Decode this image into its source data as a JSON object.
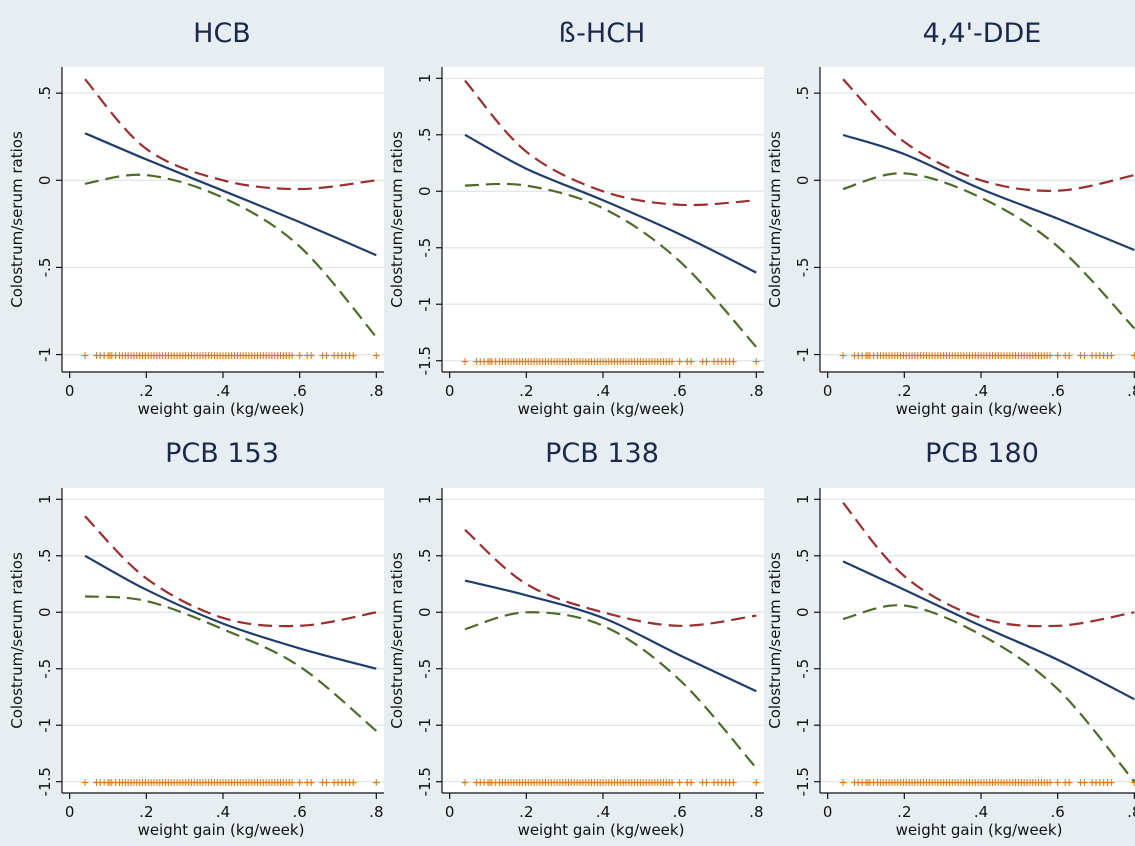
{
  "chart_data": [
    {
      "type": "line",
      "title": "HCB",
      "xlabel": "weight gain (kg/week)",
      "ylabel": "Colostrum/serum ratios",
      "x_ticks": [
        "0",
        ".2",
        ".4",
        ".6",
        ".8"
      ],
      "xlim": [
        -0.02,
        0.82
      ],
      "y_ticks": [
        ".5",
        "0",
        "-.5",
        "-1"
      ],
      "y_tick_values": [
        0.5,
        0,
        -0.5,
        -1
      ],
      "ylim": [
        -1.1,
        0.65
      ],
      "grid": true,
      "x": [
        0.04,
        0.2,
        0.4,
        0.6,
        0.8
      ],
      "series": [
        {
          "color": "#9b2e2e",
          "dash": true,
          "values": [
            0.58,
            0.18,
            0.0,
            -0.05,
            0.0
          ]
        },
        {
          "color": "#1f3d6b",
          "dash": false,
          "values": [
            0.27,
            0.12,
            -0.06,
            -0.24,
            -0.43
          ]
        },
        {
          "color": "#4f6b2a",
          "dash": true,
          "values": [
            -0.02,
            0.03,
            -0.1,
            -0.38,
            -0.9
          ]
        }
      ],
      "rug_y": -1,
      "rug_color": "#e07a10"
    },
    {
      "type": "line",
      "title": "ß-HCH",
      "xlabel": "weight gain (kg/week)",
      "ylabel": "Colostrum/serum ratios",
      "x_ticks": [
        "0",
        ".2",
        ".4",
        ".6",
        ".8"
      ],
      "xlim": [
        -0.02,
        0.82
      ],
      "y_ticks": [
        "1",
        ".5",
        "0",
        "-.5",
        "-1",
        "-1.5"
      ],
      "y_tick_values": [
        1,
        0.5,
        0,
        -0.5,
        -1,
        -1.5
      ],
      "ylim": [
        -1.6,
        1.1
      ],
      "grid": true,
      "x": [
        0.04,
        0.2,
        0.4,
        0.6,
        0.8
      ],
      "series": [
        {
          "color": "#9b2e2e",
          "dash": true,
          "values": [
            0.98,
            0.35,
            0.0,
            -0.12,
            -0.08
          ]
        },
        {
          "color": "#1f3d6b",
          "dash": false,
          "values": [
            0.5,
            0.2,
            -0.08,
            -0.38,
            -0.72
          ]
        },
        {
          "color": "#4f6b2a",
          "dash": true,
          "values": [
            0.05,
            0.05,
            -0.15,
            -0.62,
            -1.38
          ]
        }
      ],
      "rug_y": -1.5,
      "rug_color": "#e07a10"
    },
    {
      "type": "line",
      "title": "4,4'-DDE",
      "xlabel": "weight gain (kg/week)",
      "ylabel": "Colostrum/serum ratios",
      "x_ticks": [
        "0",
        ".2",
        ".4",
        ".6",
        ".8"
      ],
      "xlim": [
        -0.02,
        0.82
      ],
      "y_ticks": [
        ".5",
        "0",
        "-.5",
        "-1"
      ],
      "y_tick_values": [
        0.5,
        0,
        -0.5,
        -1
      ],
      "ylim": [
        -1.1,
        0.65
      ],
      "grid": true,
      "x": [
        0.04,
        0.2,
        0.4,
        0.6,
        0.8
      ],
      "series": [
        {
          "color": "#9b2e2e",
          "dash": true,
          "values": [
            0.58,
            0.22,
            0.0,
            -0.06,
            0.03
          ]
        },
        {
          "color": "#1f3d6b",
          "dash": false,
          "values": [
            0.26,
            0.15,
            -0.05,
            -0.22,
            -0.4
          ]
        },
        {
          "color": "#4f6b2a",
          "dash": true,
          "values": [
            -0.05,
            0.04,
            -0.1,
            -0.38,
            -0.85
          ]
        }
      ],
      "rug_y": -1,
      "rug_color": "#e07a10"
    },
    {
      "type": "line",
      "title": "PCB 153",
      "xlabel": "weight gain (kg/week)",
      "ylabel": "Colostrum/serum ratios",
      "x_ticks": [
        "0",
        ".2",
        ".4",
        ".6",
        ".8"
      ],
      "xlim": [
        -0.02,
        0.82
      ],
      "y_ticks": [
        "1",
        ".5",
        "0",
        "-.5",
        "-1",
        "-1.5"
      ],
      "y_tick_values": [
        1,
        0.5,
        0,
        -0.5,
        -1,
        -1.5
      ],
      "ylim": [
        -1.6,
        1.1
      ],
      "grid": true,
      "x": [
        0.04,
        0.2,
        0.4,
        0.6,
        0.8
      ],
      "series": [
        {
          "color": "#9b2e2e",
          "dash": true,
          "values": [
            0.85,
            0.3,
            -0.05,
            -0.12,
            0.0
          ]
        },
        {
          "color": "#1f3d6b",
          "dash": false,
          "values": [
            0.5,
            0.2,
            -0.1,
            -0.32,
            -0.5
          ]
        },
        {
          "color": "#4f6b2a",
          "dash": true,
          "values": [
            0.14,
            0.1,
            -0.15,
            -0.48,
            -1.05
          ]
        }
      ],
      "rug_y": -1.5,
      "rug_color": "#e07a10"
    },
    {
      "type": "line",
      "title": "PCB 138",
      "xlabel": "weight gain (kg/week)",
      "ylabel": "Colostrum/serum ratios",
      "x_ticks": [
        "0",
        ".2",
        ".4",
        ".6",
        ".8"
      ],
      "xlim": [
        -0.02,
        0.82
      ],
      "y_ticks": [
        "1",
        ".5",
        "0",
        "-.5",
        "-1",
        "-1.5"
      ],
      "y_tick_values": [
        1,
        0.5,
        0,
        -0.5,
        -1,
        -1.5
      ],
      "ylim": [
        -1.6,
        1.1
      ],
      "grid": true,
      "x": [
        0.04,
        0.2,
        0.4,
        0.6,
        0.8
      ],
      "series": [
        {
          "color": "#9b2e2e",
          "dash": true,
          "values": [
            0.73,
            0.25,
            0.0,
            -0.12,
            -0.03
          ]
        },
        {
          "color": "#1f3d6b",
          "dash": false,
          "values": [
            0.28,
            0.15,
            -0.05,
            -0.38,
            -0.7
          ]
        },
        {
          "color": "#4f6b2a",
          "dash": true,
          "values": [
            -0.15,
            0.0,
            -0.12,
            -0.6,
            -1.38
          ]
        }
      ],
      "rug_y": -1.5,
      "rug_color": "#e07a10"
    },
    {
      "type": "line",
      "title": "PCB 180",
      "xlabel": "weight gain (kg/week)",
      "ylabel": "Colostrum/serum ratios",
      "x_ticks": [
        "0",
        ".2",
        ".4",
        ".6",
        ".8"
      ],
      "xlim": [
        -0.02,
        0.82
      ],
      "y_ticks": [
        "1",
        ".5",
        "0",
        "-.5",
        "-1",
        "-1.5"
      ],
      "y_tick_values": [
        1,
        0.5,
        0,
        -0.5,
        -1,
        -1.5
      ],
      "ylim": [
        -1.6,
        1.1
      ],
      "grid": true,
      "x": [
        0.04,
        0.2,
        0.4,
        0.6,
        0.8
      ],
      "series": [
        {
          "color": "#9b2e2e",
          "dash": true,
          "values": [
            0.97,
            0.32,
            -0.05,
            -0.12,
            0.0
          ]
        },
        {
          "color": "#1f3d6b",
          "dash": false,
          "values": [
            0.45,
            0.2,
            -0.12,
            -0.42,
            -0.77
          ]
        },
        {
          "color": "#4f6b2a",
          "dash": true,
          "values": [
            -0.06,
            0.06,
            -0.2,
            -0.68,
            -1.5
          ]
        }
      ],
      "rug_y": -1.5,
      "rug_color": "#e07a10"
    }
  ]
}
